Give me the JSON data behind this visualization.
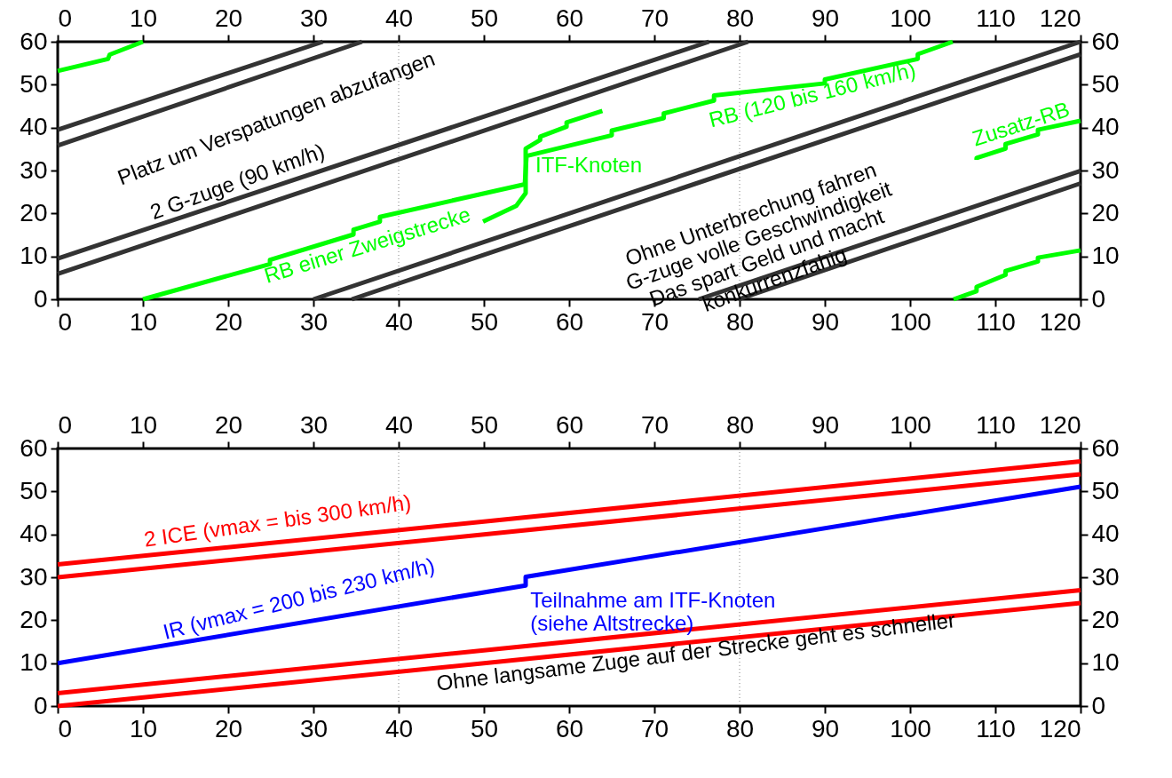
{
  "chart_data": [
    {
      "type": "line",
      "line_style": "solid",
      "grid": false,
      "legend": false,
      "xlim": [
        0,
        120
      ],
      "xticks": [
        0,
        10,
        20,
        30,
        40,
        50,
        60,
        70,
        80,
        90,
        100,
        110,
        120
      ],
      "x2lim": [
        0,
        120
      ],
      "x2ticks": [
        0,
        10,
        20,
        30,
        40,
        50,
        60,
        70,
        80,
        90,
        100,
        110,
        120
      ],
      "ylim": [
        0,
        60
      ],
      "yticks": [
        0,
        10,
        20,
        30,
        40,
        50,
        60
      ],
      "y2lim": [
        0,
        60
      ],
      "y2ticks": [
        0,
        10,
        20,
        30,
        40,
        50,
        60
      ],
      "ref_lines": [
        {
          "axis": "x",
          "value": 40,
          "color": "#808080",
          "line_style": "dotted"
        },
        {
          "axis": "x",
          "value": 80,
          "color": "#808080",
          "line_style": "dotted"
        }
      ],
      "series": [
        {
          "color": "#333333",
          "x": [
            0,
            31.1
          ],
          "values": [
            39.5,
            60
          ]
        },
        {
          "color": "#333333",
          "x": [
            0,
            35.7
          ],
          "values": [
            35.8,
            60
          ]
        },
        {
          "color": "#333333",
          "x": [
            0,
            76.4
          ],
          "values": [
            9.5,
            60
          ]
        },
        {
          "color": "#333333",
          "x": [
            0,
            81
          ],
          "values": [
            5.9,
            60
          ]
        },
        {
          "color": "#333333",
          "x": [
            30,
            120
          ],
          "values": [
            0,
            60
          ]
        },
        {
          "color": "#333333",
          "x": [
            34.5,
            120
          ],
          "values": [
            0,
            57.1
          ]
        },
        {
          "color": "#333333",
          "x": [
            75.2,
            120
          ],
          "values": [
            0,
            29.9
          ]
        },
        {
          "color": "#333333",
          "x": [
            79.9,
            120
          ],
          "values": [
            0,
            27
          ]
        },
        {
          "color": "#00ff00",
          "x": [
            10,
            24.9,
            24.9,
            34.7,
            34.7,
            37.8,
            37.8,
            54.8,
            55,
            65,
            65,
            71.1,
            71.1,
            77,
            77,
            90,
            90,
            100.9,
            100.9,
            105
          ],
          "values": [
            0,
            8.2,
            9.2,
            15.1,
            16.2,
            18.1,
            19.2,
            26.8,
            33.4,
            38.2,
            39.3,
            42.2,
            43.3,
            46.3,
            47.5,
            50.3,
            51.2,
            56,
            57.1,
            60
          ]
        },
        {
          "color": "#00ff00",
          "x": [
            49.9,
            53.8,
            54.9,
            54.9,
            56.6,
            56.6,
            59.7,
            59.7,
            63.9
          ],
          "values": [
            18.1,
            21.8,
            24.7,
            35.1,
            37.1,
            37.9,
            40.2,
            41.2,
            43.9
          ]
        },
        {
          "color": "#00ff00",
          "x": [
            0,
            5.9,
            6.1,
            10
          ],
          "values": [
            53.2,
            56,
            57,
            60
          ]
        },
        {
          "color": "#00ff00",
          "x": [
            107.8,
            107.8,
            111.2,
            111.2,
            115,
            115,
            120
          ],
          "values": [
            32.5,
            32.9,
            35.1,
            36.2,
            38.4,
            39.5,
            41.6
          ]
        },
        {
          "color": "#00ff00",
          "x": [
            105.1,
            107.8,
            107.8,
            111.2,
            111.2,
            115,
            115,
            120
          ],
          "values": [
            0,
            1.9,
            2.9,
            5.7,
            6.6,
            8.8,
            9.7,
            11.4
          ]
        }
      ],
      "annotations": [
        "Platz um Verspatungen abzufangen",
        "2 G-zuge (90 km/h)",
        "Ohne Unterbrechung fahren\nG-zuge volle Geschwindigkeit\nDas spart Geld und macht\nkonkurrenzfahig",
        "RB einer Zweigstrecke",
        "ITF-Knoten",
        "RB (120 bis 160 km/h)",
        "Zusatz-RB"
      ]
    },
    {
      "type": "line",
      "line_style": "solid",
      "grid": false,
      "legend": false,
      "xlim": [
        0,
        120
      ],
      "xticks": [
        0,
        10,
        20,
        30,
        40,
        50,
        60,
        70,
        80,
        90,
        100,
        110,
        120
      ],
      "x2lim": [
        0,
        120
      ],
      "x2ticks": [
        0,
        10,
        20,
        30,
        40,
        50,
        60,
        70,
        80,
        90,
        100,
        110,
        120
      ],
      "ylim": [
        0,
        60
      ],
      "yticks": [
        0,
        10,
        20,
        30,
        40,
        50,
        60
      ],
      "y2lim": [
        0,
        60
      ],
      "y2ticks": [
        0,
        10,
        20,
        30,
        40,
        50,
        60
      ],
      "ref_lines": [
        {
          "axis": "x",
          "value": 40,
          "color": "#808080",
          "line_style": "dotted"
        },
        {
          "axis": "x",
          "value": 80,
          "color": "#808080",
          "line_style": "dotted"
        }
      ],
      "series": [
        {
          "color": "#ff0000",
          "x": [
            0,
            120
          ],
          "values": [
            33,
            57
          ]
        },
        {
          "color": "#ff0000",
          "x": [
            0,
            120
          ],
          "values": [
            30,
            54
          ]
        },
        {
          "color": "#ff0000",
          "x": [
            0,
            120
          ],
          "values": [
            3,
            27
          ]
        },
        {
          "color": "#ff0000",
          "x": [
            0,
            120
          ],
          "values": [
            0,
            24
          ]
        },
        {
          "color": "#0000ff",
          "x": [
            0,
            54.9,
            54.9,
            120
          ],
          "values": [
            10,
            28.1,
            30.1,
            51.1
          ]
        }
      ],
      "annotations": [
        "2 ICE (vmax = bis 300 km/h)",
        "IR (vmax = 200 bis 230 km/h)",
        "Teilnahme am ITF-Knoten\n(siehe Altstrecke)",
        "Ohne langsame Zuge auf der Strecke geht es schneller"
      ]
    }
  ]
}
